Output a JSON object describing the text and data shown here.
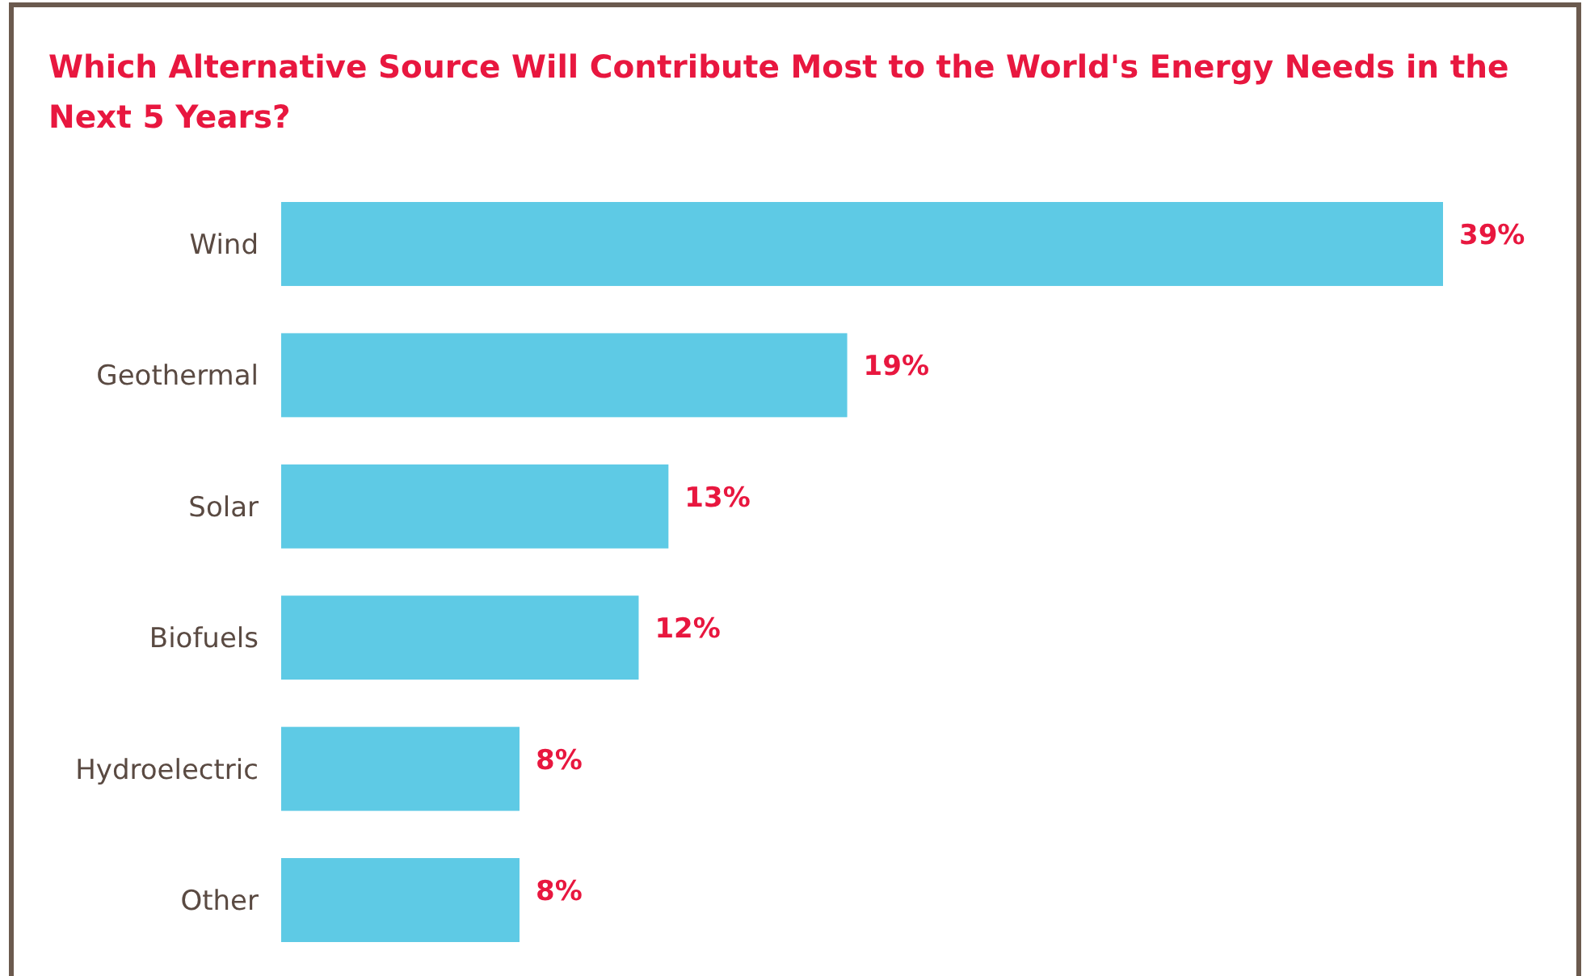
{
  "chart_data": {
    "type": "bar",
    "orientation": "horizontal",
    "title": "Which Alternative Source Will Contribute Most to the World's Energy Needs in the Next 5 Years?",
    "categories": [
      "Wind",
      "Geothermal",
      "Solar",
      "Biofuels",
      "Hydroelectric",
      "Other"
    ],
    "values": [
      39,
      19,
      13,
      12,
      8,
      8
    ],
    "value_labels": [
      "39%",
      "19%",
      "13%",
      "12%",
      "8%",
      "8%"
    ],
    "color": "#5ecae5",
    "relative": false
  }
}
